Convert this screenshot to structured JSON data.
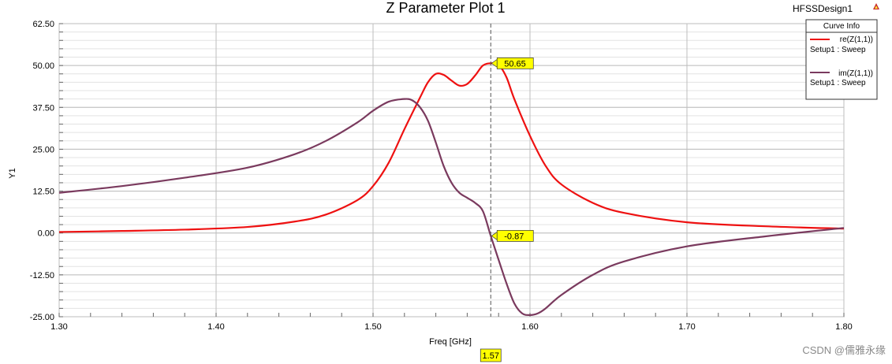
{
  "app": {
    "design_name": "HFSSDesign1",
    "watermark": "CSDN @儒雅永缘"
  },
  "chart_data": {
    "type": "line",
    "title": "Z Parameter Plot 1",
    "xlabel": "Freq [GHz]",
    "ylabel": "Y1",
    "xlim": [
      1.3,
      1.8
    ],
    "ylim": [
      -25.0,
      62.5
    ],
    "x_ticks": [
      "1.30",
      "1.40",
      "1.50",
      "1.60",
      "1.70",
      "1.80"
    ],
    "y_ticks": [
      "62.50",
      "50.00",
      "37.50",
      "25.00",
      "12.50",
      "0.00",
      "-12.50",
      "-25.00"
    ],
    "grid": true,
    "legend": {
      "title": "Curve Info",
      "placement": "top-right",
      "entries": [
        {
          "label": "re(Z(1,1))",
          "sub": "Setup1 : Sweep",
          "color": "#ee1111"
        },
        {
          "label": "im(Z(1,1))",
          "sub": "Setup1 : Sweep",
          "color": "#7a3a5e"
        }
      ]
    },
    "series": [
      {
        "name": "re(Z(1,1))",
        "color": "#ee1111",
        "x": [
          1.3,
          1.34,
          1.38,
          1.42,
          1.45,
          1.47,
          1.49,
          1.5,
          1.51,
          1.52,
          1.53,
          1.535,
          1.54,
          1.545,
          1.55,
          1.555,
          1.56,
          1.565,
          1.57,
          1.575,
          1.58,
          1.585,
          1.59,
          1.6,
          1.61,
          1.62,
          1.64,
          1.66,
          1.7,
          1.75,
          1.8
        ],
        "y": [
          0.3,
          0.6,
          1.0,
          1.8,
          3.4,
          5.5,
          9.8,
          14.0,
          21.0,
          31.0,
          40.5,
          45.0,
          47.5,
          47.2,
          45.5,
          44.0,
          44.5,
          47.0,
          50.0,
          50.65,
          50.2,
          46.5,
          40.0,
          29.0,
          20.0,
          14.5,
          9.0,
          6.0,
          3.2,
          2.0,
          1.3
        ]
      },
      {
        "name": "im(Z(1,1))",
        "color": "#7a3a5e",
        "x": [
          1.3,
          1.34,
          1.38,
          1.42,
          1.45,
          1.47,
          1.49,
          1.5,
          1.51,
          1.52,
          1.525,
          1.53,
          1.535,
          1.54,
          1.545,
          1.55,
          1.555,
          1.56,
          1.565,
          1.57,
          1.575,
          1.58,
          1.585,
          1.59,
          1.595,
          1.6,
          1.605,
          1.61,
          1.62,
          1.64,
          1.66,
          1.7,
          1.75,
          1.8
        ],
        "y": [
          12.0,
          14.0,
          16.5,
          19.5,
          23.5,
          27.5,
          33.0,
          36.5,
          39.2,
          40.0,
          39.6,
          37.5,
          33.5,
          27.0,
          20.0,
          15.0,
          12.0,
          10.5,
          9.0,
          6.5,
          -0.87,
          -8.0,
          -15.0,
          -21.0,
          -24.0,
          -24.5,
          -24.0,
          -22.5,
          -18.5,
          -12.5,
          -8.5,
          -4.0,
          -1.0,
          1.5
        ]
      }
    ],
    "marker_line": {
      "x": 1.575,
      "x_label": "1.57",
      "points": [
        {
          "series": "re(Z(1,1))",
          "y": 50.65,
          "label": "50.65"
        },
        {
          "series": "im(Z(1,1))",
          "y": -0.87,
          "label": "-0.87"
        }
      ]
    }
  }
}
